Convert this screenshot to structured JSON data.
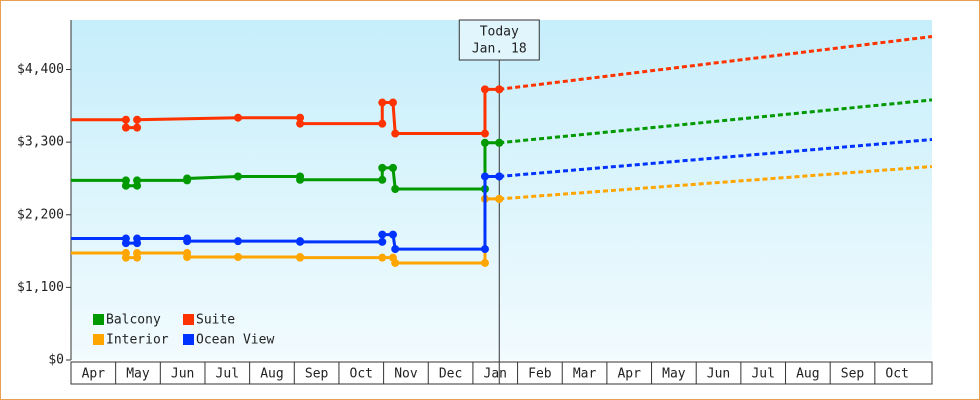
{
  "chart_data": {
    "type": "line",
    "ylim": [
      0,
      5150
    ],
    "yticks": [
      {
        "value": 0,
        "label": "$0"
      },
      {
        "value": 1100,
        "label": "$1,100"
      },
      {
        "value": 2200,
        "label": "$2,200"
      },
      {
        "value": 3300,
        "label": "$3,300"
      },
      {
        "value": 4400,
        "label": "$4,400"
      }
    ],
    "xlim": [
      0,
      19.28
    ],
    "xticks": [
      {
        "value": 0.5,
        "label": "Apr"
      },
      {
        "value": 1.5,
        "label": "May"
      },
      {
        "value": 2.5,
        "label": "Jun"
      },
      {
        "value": 3.5,
        "label": "Jul"
      },
      {
        "value": 4.5,
        "label": "Aug"
      },
      {
        "value": 5.5,
        "label": "Sep"
      },
      {
        "value": 6.5,
        "label": "Oct"
      },
      {
        "value": 7.5,
        "label": "Nov"
      },
      {
        "value": 8.5,
        "label": "Dec"
      },
      {
        "value": 9.5,
        "label": "Jan"
      },
      {
        "value": 10.5,
        "label": "Feb"
      },
      {
        "value": 11.5,
        "label": "Mar"
      },
      {
        "value": 12.5,
        "label": "Apr"
      },
      {
        "value": 13.5,
        "label": "May"
      },
      {
        "value": 14.5,
        "label": "Jun"
      },
      {
        "value": 15.5,
        "label": "Jul"
      },
      {
        "value": 16.5,
        "label": "Aug"
      },
      {
        "value": 17.5,
        "label": "Sep"
      },
      {
        "value": 18.5,
        "label": "Oct"
      }
    ],
    "annotation": {
      "x": 9.59,
      "lines": [
        "Today",
        "Jan. 18"
      ]
    },
    "series": [
      {
        "name": "Balcony",
        "color": "#009900",
        "x": [
          0,
          1.23,
          1.23,
          1.48,
          1.48,
          2.6,
          2.6,
          3.74,
          5.13,
          5.13,
          6.97,
          6.97,
          7.21,
          7.26,
          9.27,
          9.27,
          9.59
        ],
        "values": [
          2720,
          2720,
          2640,
          2640,
          2720,
          2720,
          2750,
          2780,
          2780,
          2730,
          2730,
          2910,
          2910,
          2590,
          2590,
          3290,
          3290
        ],
        "forecast": {
          "x": [
            9.59,
            19.28
          ],
          "values": [
            3290,
            3940
          ]
        }
      },
      {
        "name": "Suite",
        "color": "#ff3300",
        "x": [
          0,
          1.23,
          1.23,
          1.48,
          1.48,
          3.74,
          5.13,
          5.13,
          6.97,
          6.97,
          7.21,
          7.26,
          9.27,
          9.27,
          9.59
        ],
        "values": [
          3640,
          3640,
          3520,
          3520,
          3640,
          3670,
          3670,
          3580,
          3580,
          3900,
          3900,
          3430,
          3430,
          4100,
          4100
        ],
        "forecast": {
          "x": [
            9.59,
            19.28
          ],
          "values": [
            4100,
            4900
          ]
        }
      },
      {
        "name": "Interior",
        "color": "#ffa500",
        "x": [
          0,
          1.23,
          1.23,
          1.48,
          1.48,
          2.6,
          2.6,
          3.74,
          5.13,
          5.13,
          6.97,
          7.21,
          7.26,
          9.27,
          9.27,
          9.59
        ],
        "values": [
          1620,
          1620,
          1550,
          1550,
          1620,
          1620,
          1560,
          1560,
          1560,
          1550,
          1550,
          1550,
          1470,
          1470,
          2440,
          2440
        ],
        "forecast": {
          "x": [
            9.59,
            19.28
          ],
          "values": [
            2440,
            2930
          ]
        }
      },
      {
        "name": "Ocean View",
        "color": "#0033ff",
        "x": [
          0,
          1.23,
          1.23,
          1.48,
          1.48,
          2.6,
          2.6,
          3.74,
          5.13,
          5.13,
          6.97,
          6.97,
          7.21,
          7.26,
          9.27,
          9.27,
          9.59
        ],
        "values": [
          1840,
          1840,
          1770,
          1770,
          1840,
          1840,
          1800,
          1800,
          1800,
          1790,
          1790,
          1900,
          1900,
          1680,
          1680,
          2780,
          2780
        ],
        "forecast": {
          "x": [
            9.59,
            19.28
          ],
          "values": [
            2780,
            3340
          ]
        }
      }
    ]
  }
}
